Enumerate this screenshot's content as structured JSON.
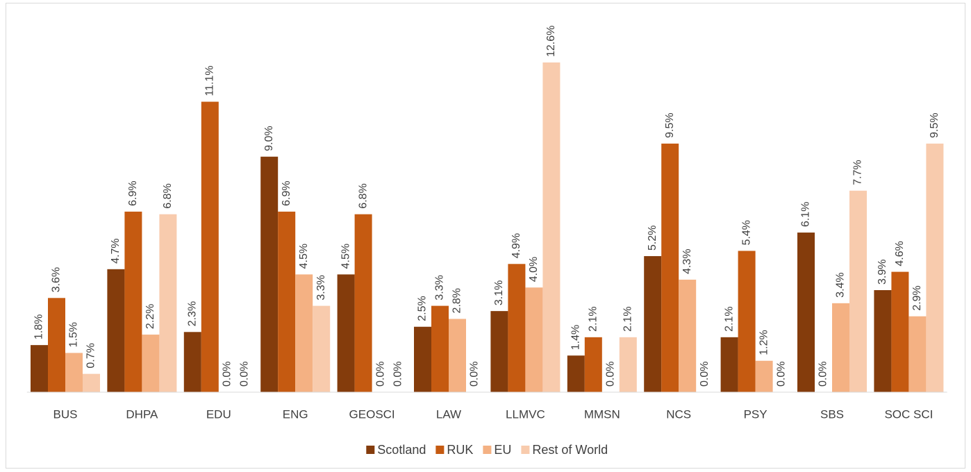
{
  "chart_data": {
    "type": "bar",
    "categories": [
      "BUS",
      "DHPA",
      "EDU",
      "ENG",
      "GEOSCI",
      "LAW",
      "LLMVC",
      "MMSN",
      "NCS",
      "PSY",
      "SBS",
      "SOC SCI"
    ],
    "series": [
      {
        "name": "Scotland",
        "color": "#843c0c",
        "values": [
          1.8,
          4.7,
          2.3,
          9.0,
          4.5,
          2.5,
          3.1,
          1.4,
          5.2,
          2.1,
          6.1,
          3.9
        ],
        "value_labels": [
          "1.8%",
          "4.7%",
          "2.3%",
          "9.0%",
          "4.5%",
          "2.5%",
          "3.1%",
          "1.4%",
          "5.2%",
          "2.1%",
          "6.1%",
          "3.9%"
        ]
      },
      {
        "name": "RUK",
        "color": "#c55a11",
        "values": [
          3.6,
          6.9,
          11.1,
          6.9,
          6.8,
          3.3,
          4.9,
          2.1,
          9.5,
          5.4,
          0.0,
          4.6
        ],
        "value_labels": [
          "3.6%",
          "6.9%",
          "11.1%",
          "6.9%",
          "6.8%",
          "3.3%",
          "4.9%",
          "2.1%",
          "9.5%",
          "5.4%",
          "0.0%",
          "4.6%"
        ]
      },
      {
        "name": "EU",
        "color": "#f4b183",
        "values": [
          1.5,
          2.2,
          0.0,
          4.5,
          0.0,
          2.8,
          4.0,
          0.0,
          4.3,
          1.2,
          3.4,
          2.9
        ],
        "value_labels": [
          "1.5%",
          "2.2%",
          "0.0%",
          "4.5%",
          "0.0%",
          "2.8%",
          "4.0%",
          "0.0%",
          "4.3%",
          "1.2%",
          "3.4%",
          "2.9%"
        ]
      },
      {
        "name": "Rest of World",
        "color": "#f8cbad",
        "values": [
          0.7,
          6.8,
          0.0,
          3.3,
          0.0,
          0.0,
          12.6,
          2.1,
          0.0,
          0.0,
          7.7,
          9.5
        ],
        "value_labels": [
          "0.7%",
          "6.8%",
          "0.0%",
          "3.3%",
          "0.0%",
          "0.0%",
          "12.6%",
          "2.1%",
          "0.0%",
          "0.0%",
          "7.7%",
          "9.5%"
        ]
      }
    ],
    "legend": "bottom"
  }
}
